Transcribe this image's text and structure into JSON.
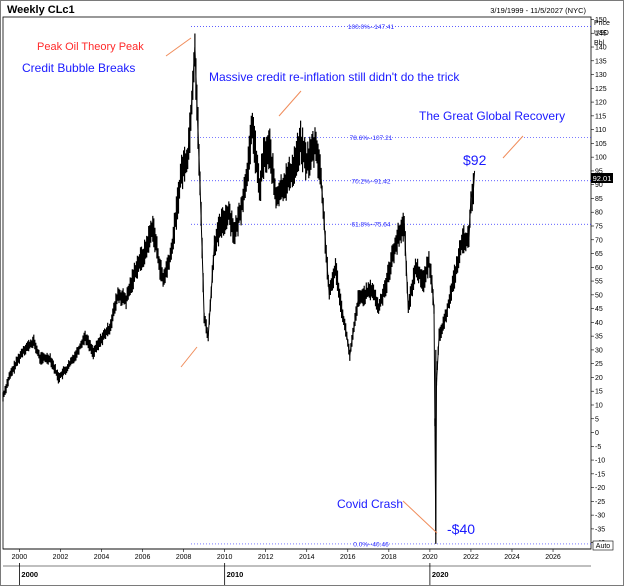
{
  "header": {
    "title": "Weekly CLc1",
    "date_range": "3/19/1999 - 11/5/2027 (NYC)"
  },
  "chart_data": {
    "type": "line",
    "title": "Weekly CLc1",
    "units": [
      "Price",
      "USD",
      "Bbl"
    ],
    "ylim": [
      -40,
      150
    ],
    "xlim": [
      1999.2,
      2027.85
    ],
    "y_ticks": [
      150,
      145,
      140,
      135,
      130,
      125,
      120,
      115,
      110,
      105,
      100,
      95,
      90,
      85,
      80,
      75,
      70,
      65,
      60,
      55,
      50,
      45,
      40,
      35,
      30,
      25,
      20,
      15,
      10,
      5,
      0,
      -5,
      -10,
      -15,
      -20,
      -25,
      -30,
      -35,
      -40
    ],
    "x_ticks": [
      2000,
      2002,
      2004,
      2006,
      2008,
      2010,
      2012,
      2014,
      2016,
      2018,
      2020,
      2022,
      2024,
      2026
    ],
    "x_major_ticks": [
      2000,
      2010,
      2020
    ],
    "last_price_label": "92.01",
    "last_price": 92.01,
    "fibonacci_levels": [
      {
        "label": "100.0%--147.41",
        "value": 147.41
      },
      {
        "label": "78.6%--107.21",
        "value": 107.21
      },
      {
        "label": "70.2%--91.42",
        "value": 91.42
      },
      {
        "label": "61.8%--75.64",
        "value": 75.64
      },
      {
        "label": "0.0%--40.46",
        "value": -40.46
      }
    ],
    "series": [
      {
        "x": [
          1999.2,
          1999.5,
          1999.9,
          2000.2,
          2000.7,
          2001.0,
          2001.5,
          2001.9,
          2002.3,
          2002.8,
          2003.2,
          2003.6,
          2004.0,
          2004.4,
          2004.8,
          2005.2,
          2005.7,
          2006.1,
          2006.5,
          2006.8,
          2007.0,
          2007.4,
          2007.9,
          2008.2,
          2008.4,
          2008.55,
          2008.8,
          2008.95,
          2009.0,
          2009.2,
          2009.5,
          2009.8,
          2010.2,
          2010.5,
          2010.9,
          2011.2,
          2011.35,
          2011.7,
          2011.9,
          2012.2,
          2012.5,
          2012.9,
          2013.3,
          2013.7,
          2014.0,
          2014.45,
          2014.7,
          2014.95,
          2015.1,
          2015.4,
          2015.7,
          2015.95,
          2016.1,
          2016.5,
          2016.8,
          2017.2,
          2017.5,
          2017.9,
          2018.3,
          2018.75,
          2018.95,
          2019.3,
          2019.7,
          2019.95,
          2020.1,
          2020.2,
          2020.29,
          2020.32,
          2020.45,
          2020.7,
          2021.0,
          2021.3,
          2021.6,
          2021.9,
          2022.0,
          2022.12,
          2022.18
        ],
        "values": [
          13,
          20,
          26,
          30,
          33,
          27,
          27,
          20,
          23,
          29,
          35,
          29,
          34,
          38,
          50,
          48,
          60,
          65,
          75,
          62,
          55,
          65,
          95,
          100,
          120,
          140,
          90,
          55,
          42,
          35,
          68,
          75,
          80,
          72,
          85,
          100,
          112,
          88,
          100,
          103,
          85,
          90,
          95,
          105,
          98,
          105,
          92,
          65,
          50,
          60,
          45,
          35,
          28,
          48,
          50,
          52,
          45,
          55,
          68,
          76,
          45,
          60,
          55,
          62,
          55,
          45,
          -37,
          18,
          35,
          40,
          50,
          60,
          70,
          70,
          85,
          88,
          95
        ]
      }
    ],
    "annotations": [
      {
        "text": "Peak Oil Theory Peak",
        "color": "#ff2a2a"
      },
      {
        "text": "Credit Bubble Breaks",
        "color": "#1a1aff"
      },
      {
        "text": "Massive credit re-inflation still didn't do the trick",
        "color": "#1a1aff"
      },
      {
        "text": "The Great Global Recovery",
        "color": "#1a1aff"
      },
      {
        "text": "$92",
        "color": "#1a1aff"
      },
      {
        "text": "Covid Crash",
        "color": "#1a1aff"
      },
      {
        "text": "-$40",
        "color": "#1a1aff"
      }
    ],
    "axis_badge": "Auto",
    "colors": {
      "series": "#000000",
      "fib_lines": "#2a2aff",
      "arrows": "#f08c5a"
    }
  }
}
